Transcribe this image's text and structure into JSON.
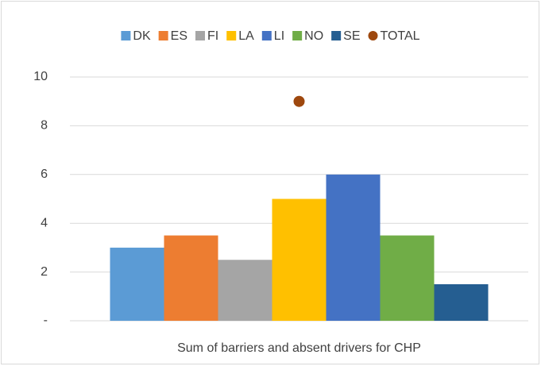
{
  "chart_data": {
    "type": "bar",
    "categories": [
      "Sum of barriers and absent drivers for CHP"
    ],
    "series": [
      {
        "name": "DK",
        "color": "#5b9bd5",
        "values": [
          3
        ]
      },
      {
        "name": "ES",
        "color": "#ed7d31",
        "values": [
          3.5
        ]
      },
      {
        "name": "FI",
        "color": "#a5a5a5",
        "values": [
          2.5
        ]
      },
      {
        "name": "LA",
        "color": "#ffc000",
        "values": [
          5
        ]
      },
      {
        "name": "LI",
        "color": "#4472c4",
        "values": [
          6
        ]
      },
      {
        "name": "NO",
        "color": "#70ad47",
        "values": [
          3.5
        ]
      },
      {
        "name": "SE",
        "color": "#255e91",
        "values": [
          1.5
        ]
      },
      {
        "name": "TOTAL",
        "color": "#9e480e",
        "type": "scatter",
        "values": [
          9
        ]
      }
    ],
    "ylim": [
      0,
      10
    ],
    "yticks": [
      {
        "value": 0,
        "label": "-"
      },
      2,
      4,
      6,
      8,
      10
    ],
    "grid": true,
    "legend": "top"
  }
}
